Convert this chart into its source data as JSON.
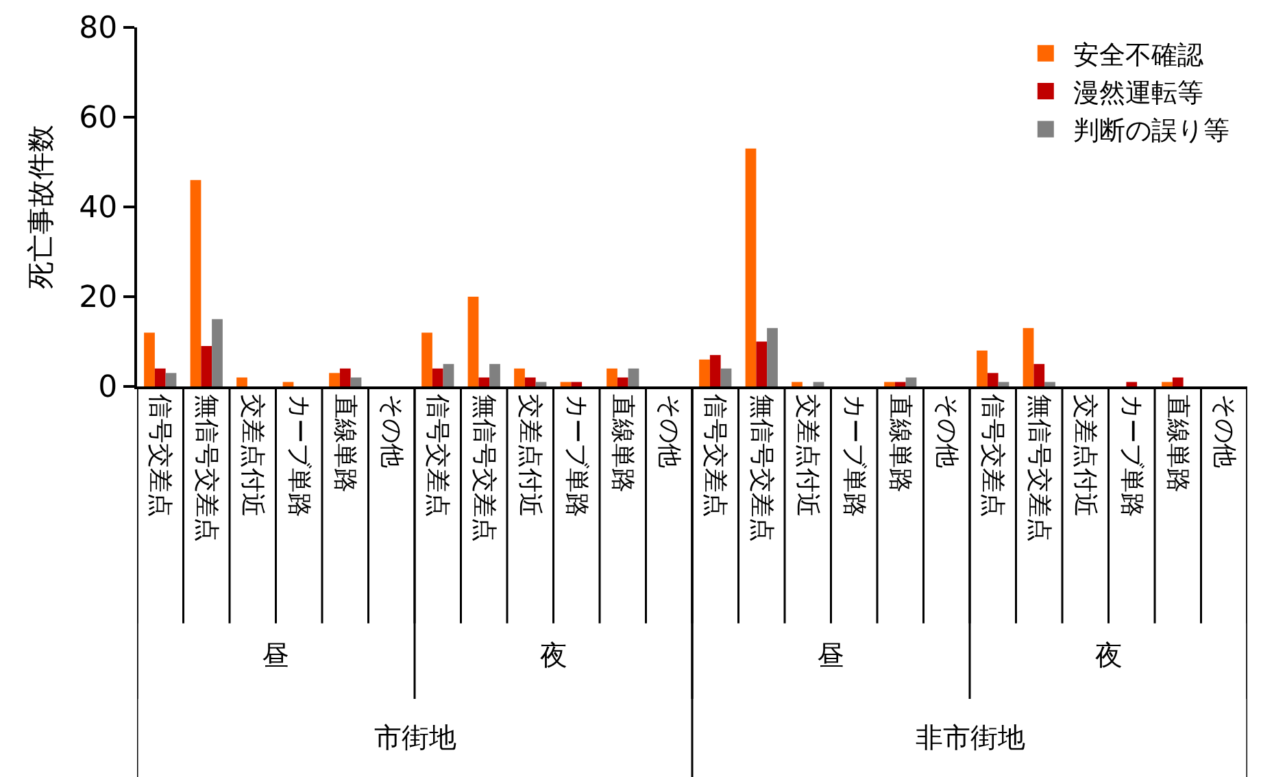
{
  "chart_data": {
    "type": "bar",
    "ylabel": "死亡事故件数",
    "categories": [
      "信号交差点",
      "無信号交差点",
      "交差点付近",
      "カーブ単路",
      "直線単路",
      "その他",
      "信号交差点",
      "無信号交差点",
      "交差点付近",
      "カーブ単路",
      "直線単路",
      "その他",
      "信号交差点",
      "無信号交差点",
      "交差点付近",
      "カーブ単路",
      "直線単路",
      "その他",
      "信号交差点",
      "無信号交差点",
      "交差点付近",
      "カーブ単路",
      "直線単路",
      "その他"
    ],
    "series": [
      {
        "name": "安全不確認",
        "color": "#ff6600",
        "values": [
          12,
          46,
          2,
          1,
          3,
          0,
          12,
          20,
          4,
          1,
          4,
          0,
          6,
          53,
          1,
          0,
          1,
          0,
          8,
          13,
          0,
          0,
          1,
          0
        ]
      },
      {
        "name": "漫然運転等",
        "color": "#c00000",
        "values": [
          4,
          9,
          0,
          0,
          4,
          0,
          4,
          2,
          2,
          1,
          2,
          0,
          7,
          10,
          0,
          0,
          1,
          0,
          3,
          5,
          0,
          1,
          2,
          0
        ]
      },
      {
        "name": "判断の誤り等",
        "color": "#808080",
        "values": [
          3,
          15,
          0,
          0,
          2,
          0,
          5,
          5,
          1,
          0,
          4,
          0,
          4,
          13,
          1,
          0,
          2,
          0,
          1,
          1,
          0,
          0,
          0,
          0
        ]
      }
    ],
    "annotations": [
      "昼",
      "夜",
      "昼",
      "夜",
      "市街地",
      "非市街地"
    ],
    "ylim": [
      0,
      80
    ],
    "yticks": [
      0,
      20,
      40,
      60,
      80
    ],
    "legend": "top right"
  }
}
